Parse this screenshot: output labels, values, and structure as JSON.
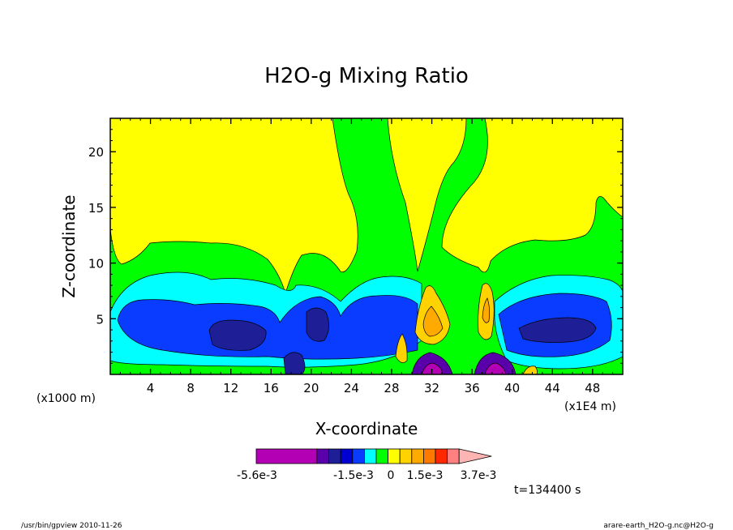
{
  "chart_data": {
    "type": "heatmap",
    "title": "H2O-g Mixing Ratio",
    "xlabel": "X-coordinate",
    "ylabel": "Z-coordinate",
    "x_unit_left": "(x1000 m)",
    "x_unit_right": "(x1E4 m)",
    "xlim": [
      0,
      51
    ],
    "ylim": [
      0,
      23
    ],
    "x_ticks": [
      4,
      8,
      12,
      16,
      20,
      24,
      28,
      32,
      36,
      40,
      44,
      48
    ],
    "y_ticks": [
      5,
      10,
      15,
      20
    ],
    "x_tick_labels": [
      "4",
      "8",
      "12",
      "16",
      "20",
      "24",
      "28",
      "32",
      "36",
      "40",
      "44",
      "48"
    ],
    "y_tick_labels": [
      "5",
      "10",
      "15",
      "20"
    ],
    "colorbar": {
      "colors": [
        "#b400b4",
        "#5a00aa",
        "#1e1e96",
        "#0000d2",
        "#0a3cff",
        "#00ffff",
        "#00ff00",
        "#ffff00",
        "#ffd200",
        "#ffaa00",
        "#ff7800",
        "#ff2800",
        "#ff8080",
        "#ffb4b4"
      ],
      "labels": [
        "-5.6e-3",
        "-1.5e-3",
        "0",
        "1.5e-3",
        "3.7e-3"
      ]
    },
    "time_label": "t=134400 s",
    "footer_left": "/usr/bin/gpview   2010-11-26",
    "footer_right": "arare-earth_H2O-g.nc@H2O-g"
  }
}
